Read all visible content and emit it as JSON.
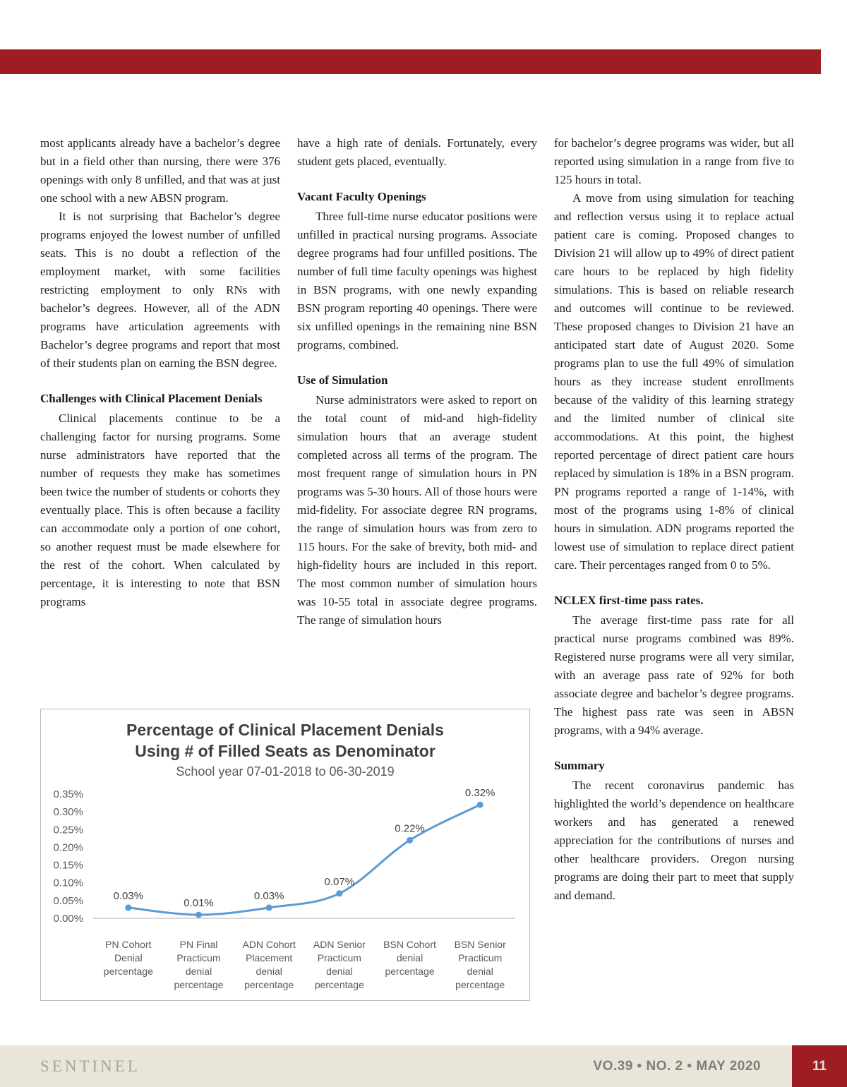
{
  "page": {
    "accent_color": "#9d1d22",
    "footer": {
      "brand": "SENTINEL",
      "issue": "VO.39 • NO. 2 • MAY 2020",
      "page_number": "11",
      "bg_color": "#eae5d9"
    }
  },
  "article": {
    "col1": {
      "p1": "most applicants already have a bachelor’s degree but in a field other than nursing, there were 376 openings with only 8 unfilled, and that was at just one school with a new ABSN program.",
      "p2": "It is not surprising that Bachelor’s degree programs enjoyed the lowest number of unfilled seats. This is no doubt a reflection of the employment market, with some facilities restricting employment to only RNs with bachelor’s degrees. However, all of the ADN programs have articulation agreements with Bachelor’s degree programs and report that most of their students plan on earning the BSN degree.",
      "h1": "Challenges with Clinical Placement Denials",
      "p3": "Clinical placements continue to be a challenging factor for nursing programs. Some nurse administrators have reported that the number of requests they make has sometimes been twice the number of students or cohorts they eventually place. This is often because a facility can accommodate only a portion of one cohort, so another request must be made elsewhere for the rest of the cohort. When calculated by percentage, it is interesting to note that BSN programs"
    },
    "col2": {
      "p1": "have a high rate of denials. Fortunately, every student gets placed, eventually.",
      "h1": "Vacant Faculty Openings",
      "p2": "Three full-time nurse educator positions were unfilled in practical nursing programs. Associate degree programs had four unfilled positions. The number of full time faculty openings was highest in BSN programs, with one newly expanding BSN program reporting 40 openings. There were six unfilled openings in the remaining nine BSN programs, combined.",
      "h2": "Use of Simulation",
      "p3": "Nurse administrators were asked to report on the total count of mid-and high-fidelity simulation hours that an average student completed across all terms of the program. The most frequent range of simulation hours in PN programs was 5-30 hours. All of those hours were mid-fidelity. For associate degree RN programs, the range of simulation hours was from zero to 115 hours. For the sake of brevity, both mid- and high-fidelity hours are included in this report. The most common number of simulation hours was 10-55 total in associate degree programs. The range of simulation hours"
    },
    "col3": {
      "p1": "for bachelor’s degree programs was wider, but all reported using simulation in a range from five to 125 hours in total.",
      "p2": "A move from using simulation for teaching and reflection versus using it to replace actual patient care is coming. Proposed changes to Division 21 will allow up to 49% of direct patient care hours to be replaced by high fidelity simulations. This is based on reliable research and outcomes will continue to be reviewed. These proposed changes to Division 21 have an anticipated start date of August 2020. Some programs plan to use the full 49% of simulation hours as they increase student enrollments because of the validity of this learning strategy and the limited number of clinical site accommodations. At this point, the highest reported percentage of direct patient care hours replaced by simulation is 18% in a BSN program. PN programs reported a range of 1-14%, with most of the programs using 1-8% of clinical hours in simulation. ADN programs reported the lowest use of simulation to replace direct patient care. Their percentages ranged from 0 to 5%.",
      "h1": "NCLEX first-time pass rates.",
      "p3": "The average first-time pass rate for all practical nurse programs combined was 89%. Registered nurse programs were all very similar, with an average pass rate of 92% for both associate degree and bachelor’s degree programs. The highest pass rate was seen in ABSN programs, with a 94% average.",
      "h2": "Summary",
      "p4": "The recent coronavirus pandemic has highlighted the world’s dependence on healthcare workers and has generated a renewed appreciation for the contributions of nurses and other healthcare providers. Oregon nursing programs are doing their part to meet that supply and demand."
    }
  },
  "chart_data": {
    "type": "line",
    "title": "Percentage of Clinical Placement Denials",
    "title_line2": "Using # of Filled Seats as Denominator",
    "subtitle": "School year 07-01-2018 to 06-30-2019",
    "categories": [
      "PN Cohort\nDenial\npercentage",
      "PN Final\nPracticum\ndenial\npercentage",
      "ADN Cohort\nPlacement\ndenial\npercentage",
      "ADN Senior\nPracticum\ndenial\npercentage",
      "BSN Cohort\ndenial\npercentage",
      "BSN Senior\nPracticum\ndenial\npercentage"
    ],
    "values": [
      0.03,
      0.01,
      0.03,
      0.07,
      0.22,
      0.32
    ],
    "point_labels": [
      "0.03%",
      "0.01%",
      "0.03%",
      "0.07%",
      "0.22%",
      "0.32%"
    ],
    "y_ticks": [
      "0.00%",
      "0.05%",
      "0.10%",
      "0.15%",
      "0.20%",
      "0.25%",
      "0.30%",
      "0.35%"
    ],
    "ylim": [
      0,
      0.35
    ],
    "unit": "percent",
    "line_color": "#5b9bd5",
    "grid": false,
    "legend": "none"
  }
}
